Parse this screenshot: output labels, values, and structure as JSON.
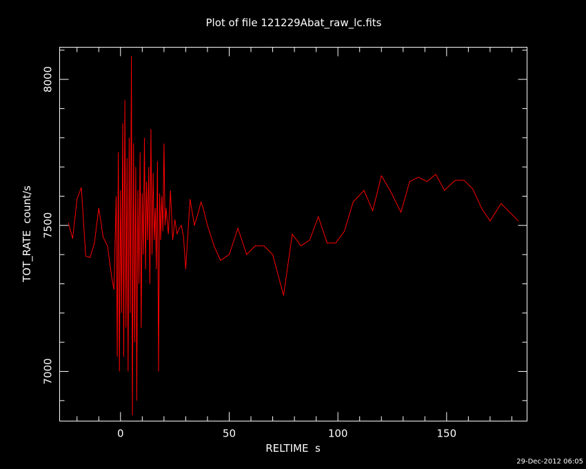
{
  "chart_data": {
    "type": "line",
    "title": "Plot of file 121229Abat_raw_lc.fits",
    "xlabel": "RELTIME  s",
    "ylabel": "TOT_RATE  count/s",
    "timestamp": "29-Dec-2012 06:05",
    "xlim": [
      -28,
      187
    ],
    "ylim": [
      6830,
      8110
    ],
    "xticks": [
      0,
      50,
      100,
      150
    ],
    "yticks": [
      7000,
      7500,
      8000
    ],
    "x_minor_step": 10,
    "y_minor_step": 100,
    "colors": {
      "background": "#000000",
      "axes": "#ffffff",
      "series": "#ff0000"
    },
    "series": [
      {
        "x": [
          -24,
          -22,
          -20,
          -18,
          -16,
          -14,
          -12,
          -10,
          -8,
          -6,
          -4,
          -3,
          -2,
          -1.5,
          -1,
          -0.5,
          0,
          0.5,
          1,
          1.5,
          2,
          2.5,
          3,
          3.5,
          4,
          4.5,
          5,
          5.5,
          6,
          6.5,
          7,
          7.5,
          8,
          8.5,
          9,
          9.5,
          10,
          10.5,
          11,
          11.5,
          12,
          12.5,
          13,
          13.5,
          14,
          14.5,
          15,
          15.5,
          16,
          16.5,
          17,
          17.5,
          18,
          18.5,
          19,
          19.5,
          20,
          20.5,
          21,
          22,
          23,
          24,
          25,
          26,
          27,
          28,
          29,
          30,
          32,
          34,
          36,
          37,
          38,
          40,
          43,
          46,
          50,
          54,
          58,
          62,
          66,
          70,
          75,
          79,
          83,
          87,
          91,
          95,
          99,
          103,
          107,
          112,
          116,
          120,
          124,
          129,
          133,
          137,
          141,
          145,
          149,
          154,
          158,
          162,
          166,
          170,
          175,
          179,
          183
        ],
        "values": [
          7510,
          7455,
          7590,
          7630,
          7395,
          7390,
          7440,
          7560,
          7460,
          7430,
          7320,
          7280,
          7600,
          7050,
          7750,
          7000,
          7620,
          7200,
          7850,
          7050,
          7930,
          7150,
          7730,
          7000,
          7800,
          7200,
          8080,
          6850,
          7780,
          7100,
          7700,
          6900,
          7620,
          7300,
          7750,
          7150,
          7610,
          7400,
          7800,
          7350,
          7650,
          7450,
          7700,
          7300,
          7830,
          7400,
          7680,
          7450,
          7560,
          7350,
          7720,
          7000,
          7610,
          7450,
          7600,
          7480,
          7780,
          7500,
          7560,
          7470,
          7620,
          7450,
          7520,
          7470,
          7490,
          7500,
          7460,
          7350,
          7590,
          7500,
          7550,
          7580,
          7560,
          7500,
          7430,
          7380,
          7400,
          7490,
          7400,
          7430,
          7430,
          7400,
          7260,
          7470,
          7430,
          7450,
          7530,
          7440,
          7440,
          7480,
          7580,
          7620,
          7550,
          7670,
          7620,
          7545,
          7650,
          7665,
          7650,
          7675,
          7620,
          7655,
          7655,
          7625,
          7560,
          7515,
          7575,
          7545,
          7515
        ]
      }
    ]
  }
}
